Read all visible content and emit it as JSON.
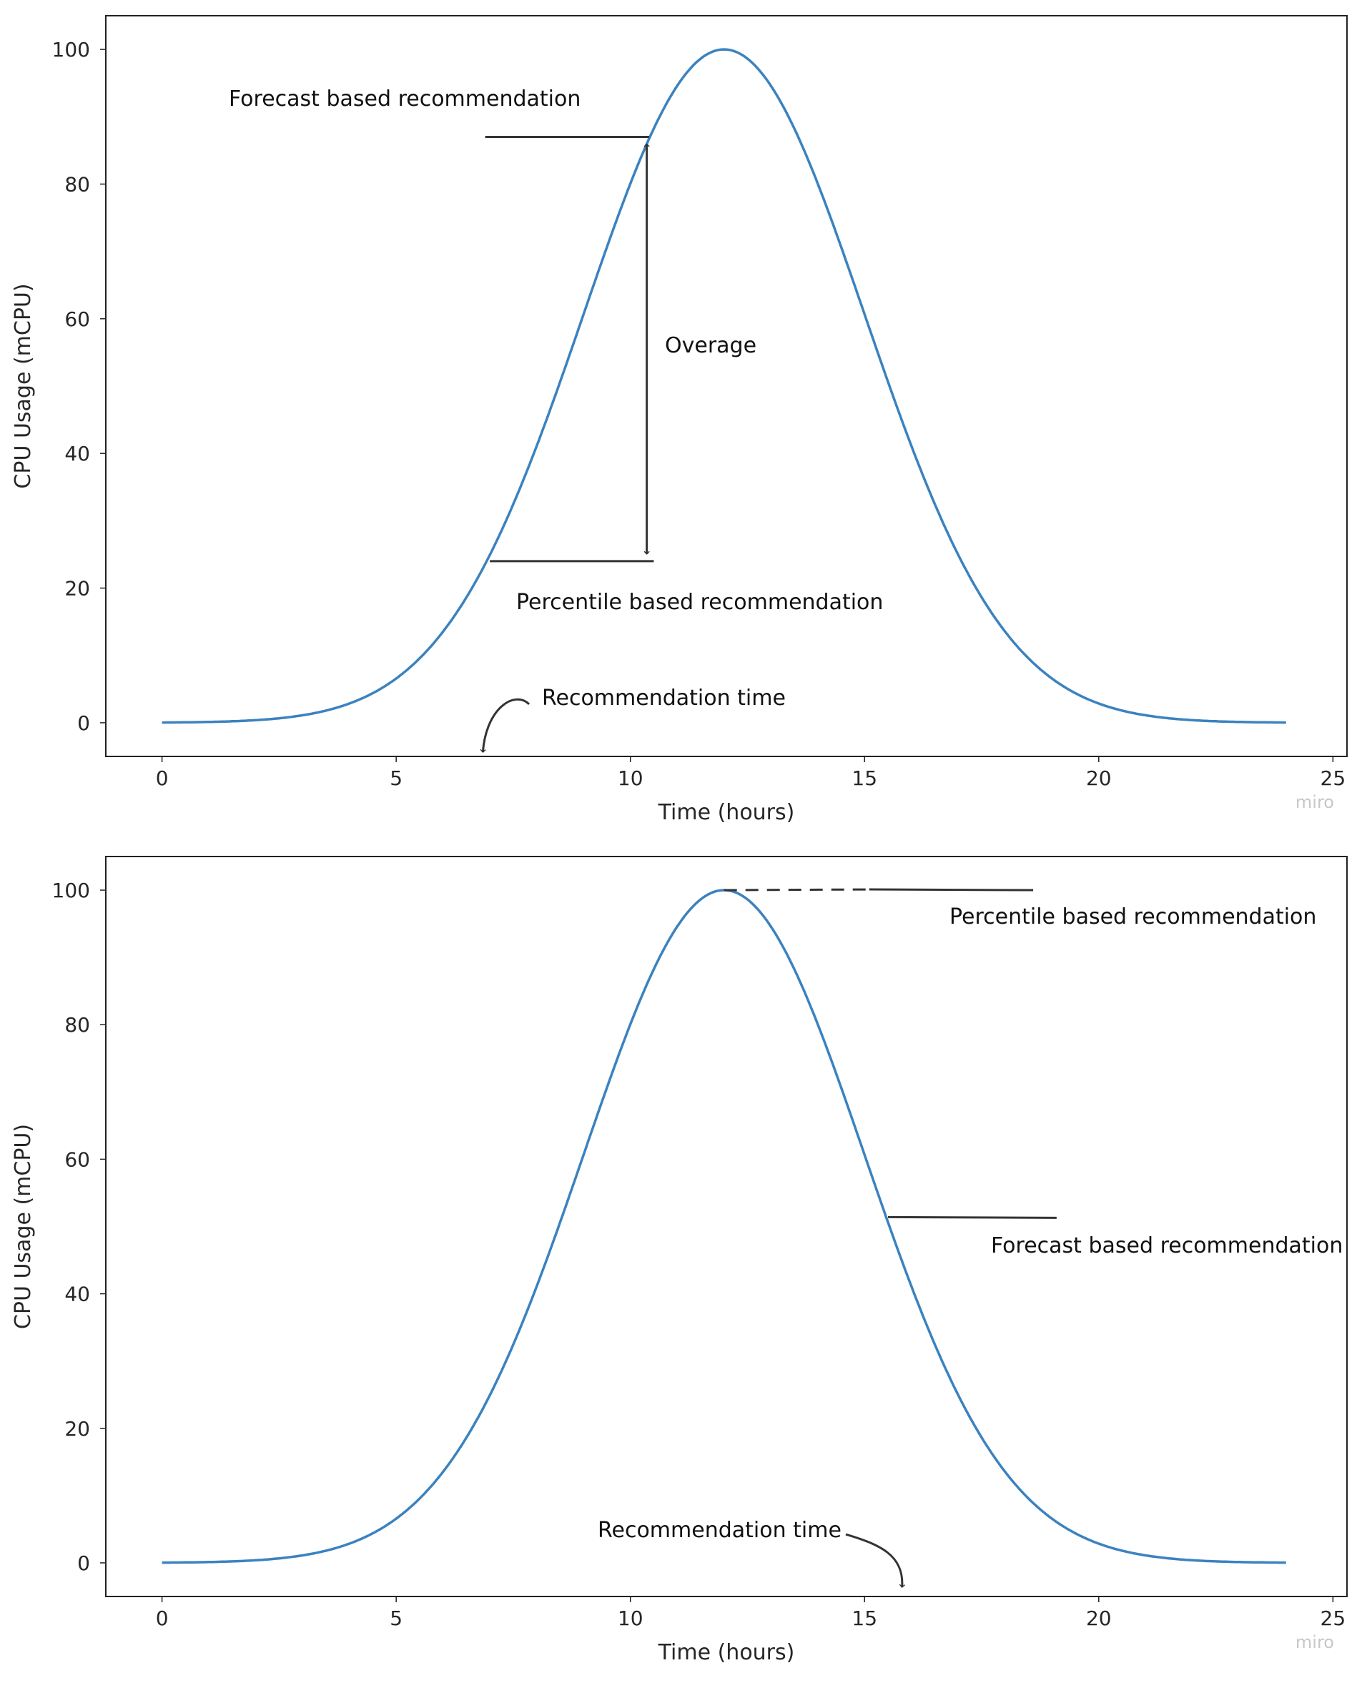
{
  "chart_data": [
    {
      "type": "line",
      "xlabel": "Time (hours)",
      "ylabel": "CPU Usage (mCPU)",
      "xlim": [
        -1.2,
        25.3
      ],
      "ylim": [
        -5,
        105
      ],
      "xticks": [
        0,
        5,
        10,
        15,
        20,
        25
      ],
      "yticks": [
        0,
        20,
        40,
        60,
        80,
        100
      ],
      "grid": false,
      "line_color": "#3b82bf",
      "series": [
        {
          "function": "100*exp(-(t-12)^2/18)",
          "x_range": [
            0,
            24
          ]
        }
      ],
      "annotations": {
        "forecast": {
          "text": "Forecast based recommendation",
          "y": 87,
          "x_range": [
            6.9,
            10.4
          ]
        },
        "percentile": {
          "text": "Percentile based recommendation",
          "y": 24,
          "x_range": [
            7.0,
            10.5
          ]
        },
        "overage": {
          "text": "Overage",
          "x": 10.35,
          "y_range": [
            24,
            87
          ]
        },
        "recommendation_time": {
          "text": "Recommendation time",
          "x": 6.85
        }
      },
      "watermark": "miro"
    },
    {
      "type": "line",
      "xlabel": "Time (hours)",
      "ylabel": "CPU Usage (mCPU)",
      "xlim": [
        -1.2,
        25.3
      ],
      "ylim": [
        -5,
        105
      ],
      "xticks": [
        0,
        5,
        10,
        15,
        20,
        25
      ],
      "yticks": [
        0,
        20,
        40,
        60,
        80,
        100
      ],
      "grid": false,
      "line_color": "#3b82bf",
      "series": [
        {
          "function": "100*exp(-(t-12)^2/18)",
          "x_range": [
            0,
            24
          ]
        }
      ],
      "annotations": {
        "percentile": {
          "text": "Percentile based recommendation",
          "y": 100,
          "dashed_x_range": [
            12.0,
            15.1
          ],
          "x_range": [
            15.1,
            18.6
          ]
        },
        "forecast": {
          "text": "Forecast based recommendation",
          "y": 51.4,
          "x_range": [
            15.5,
            19.1
          ]
        },
        "recommendation_time": {
          "text": "Recommendation time",
          "x": 15.8
        }
      },
      "watermark": "miro"
    }
  ]
}
